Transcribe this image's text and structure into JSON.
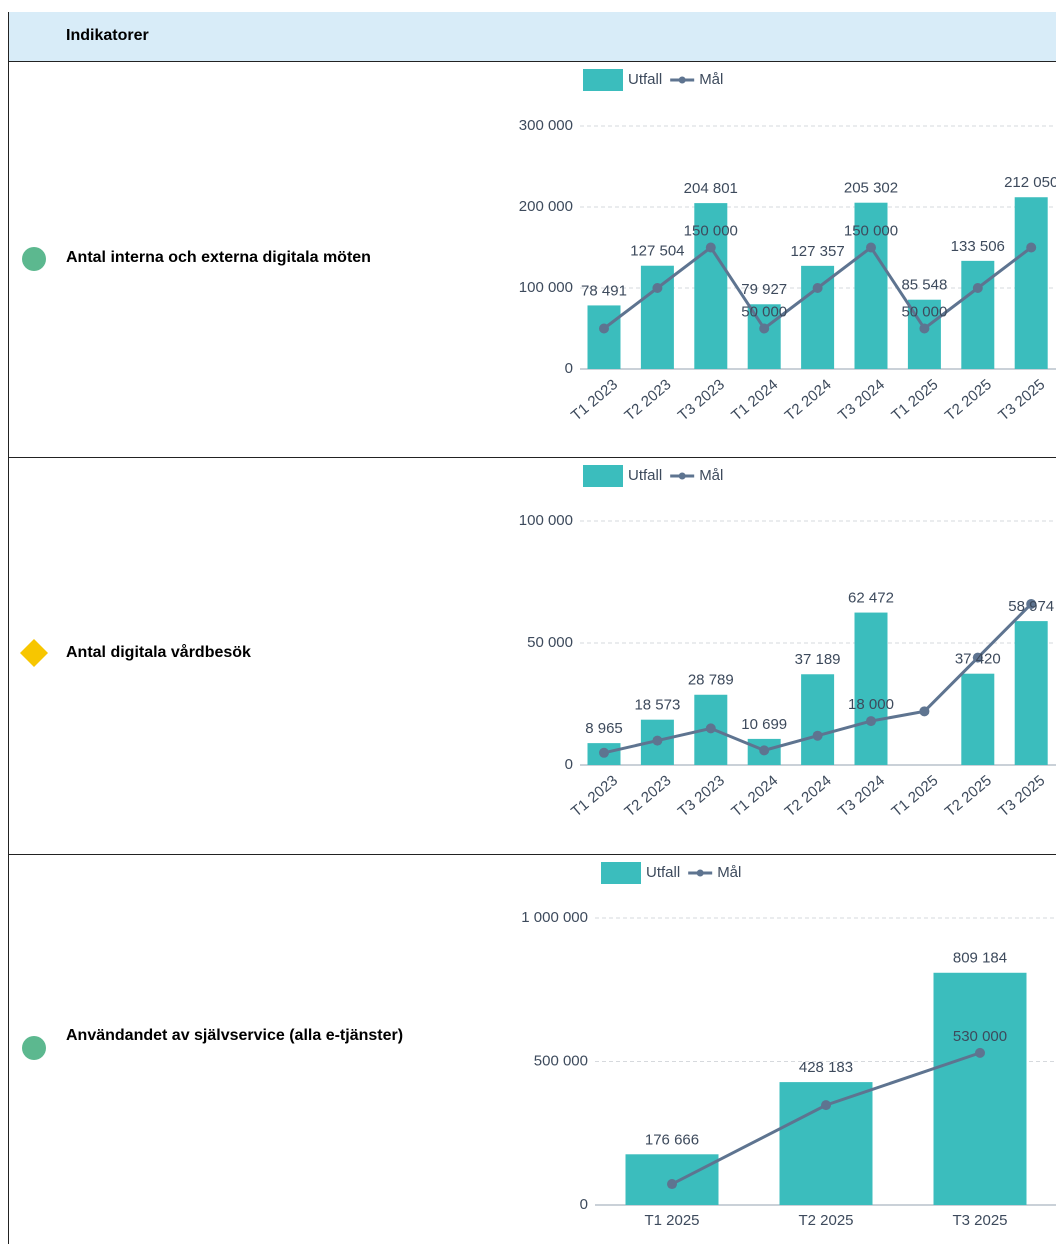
{
  "header": {
    "title": "Indikatorer"
  },
  "rows": [
    {
      "label": "Antal interna och externa digitala möten"
    },
    {
      "label": "Antal digitala vårdbesök"
    },
    {
      "label": "Användandet av självservice (alla e-tjänster)"
    }
  ],
  "chart_data": [
    {
      "type": "bar",
      "categories": [
        "T1 2023",
        "T2 2023",
        "T3 2023",
        "T1 2024",
        "T2 2024",
        "T3 2024",
        "T1 2025",
        "T2 2025",
        "T3 2025"
      ],
      "series": [
        {
          "name": "Utfall",
          "type": "bar",
          "color": "#3bbdbd",
          "values": [
            78491,
            127504,
            204801,
            79927,
            127357,
            205302,
            85548,
            133506,
            212050
          ],
          "value_labels": [
            "78 491",
            "127 504",
            "204 801",
            "79 927",
            "127 357",
            "205 302",
            "85 548",
            "133 506",
            "212 050"
          ]
        },
        {
          "name": "Mål",
          "type": "line",
          "color": "#5e7490",
          "values": [
            50000,
            100000,
            150000,
            50000,
            100000,
            150000,
            50000,
            100000,
            150000
          ],
          "value_labels": [
            null,
            null,
            "150 000",
            "50 000",
            null,
            "150 000",
            "50 000",
            null,
            null
          ]
        }
      ],
      "ylim": [
        0,
        300000
      ],
      "yticks": [
        0,
        {
          "value": 100000,
          "label": "100 000"
        },
        {
          "value": 200000,
          "label": "200 000"
        },
        {
          "value": 300000,
          "label": "300 000"
        }
      ],
      "grid": true,
      "legend": "top"
    },
    {
      "type": "bar",
      "categories": [
        "T1 2023",
        "T2 2023",
        "T3 2023",
        "T1 2024",
        "T2 2024",
        "T3 2024",
        "T1 2025",
        "T2 2025",
        "T3 2025"
      ],
      "series": [
        {
          "name": "Utfall",
          "type": "bar",
          "color": "#3bbdbd",
          "values": [
            8965,
            18573,
            28789,
            10699,
            37189,
            62472,
            null,
            37420,
            58974
          ],
          "value_labels": [
            "8 965",
            "18 573",
            "28 789",
            "10 699",
            "37 189",
            "62 472",
            null,
            "37 420",
            "58 974"
          ]
        },
        {
          "name": "Mål",
          "type": "line",
          "color": "#5e7490",
          "values": [
            5000,
            10000,
            15000,
            6000,
            12000,
            18000,
            22000,
            44000,
            66000
          ],
          "value_labels": [
            null,
            null,
            null,
            null,
            null,
            "18 000",
            null,
            null,
            null
          ]
        }
      ],
      "ylim": [
        0,
        100000
      ],
      "yticks": [
        0,
        {
          "value": 50000,
          "label": "50 000"
        },
        {
          "value": 100000,
          "label": "100 000"
        }
      ],
      "grid": true,
      "legend": "top"
    },
    {
      "type": "bar",
      "categories": [
        "T1 2025",
        "T2 2025",
        "T3 2025"
      ],
      "series": [
        {
          "name": "Utfall",
          "type": "bar",
          "color": "#3bbdbd",
          "values": [
            176666,
            428183,
            809184
          ],
          "value_labels": [
            "176 666",
            "428 183",
            "809 184"
          ]
        },
        {
          "name": "Mål",
          "type": "line",
          "color": "#5e7490",
          "values": [
            73000,
            348000,
            530000
          ],
          "value_labels": [
            null,
            null,
            "530 000"
          ]
        }
      ],
      "ylim": [
        0,
        1000000
      ],
      "yticks": [
        0,
        {
          "value": 500000,
          "label": "500 000"
        },
        {
          "value": 1000000,
          "label": "1 000 000"
        }
      ],
      "grid": true,
      "legend": "top"
    }
  ]
}
